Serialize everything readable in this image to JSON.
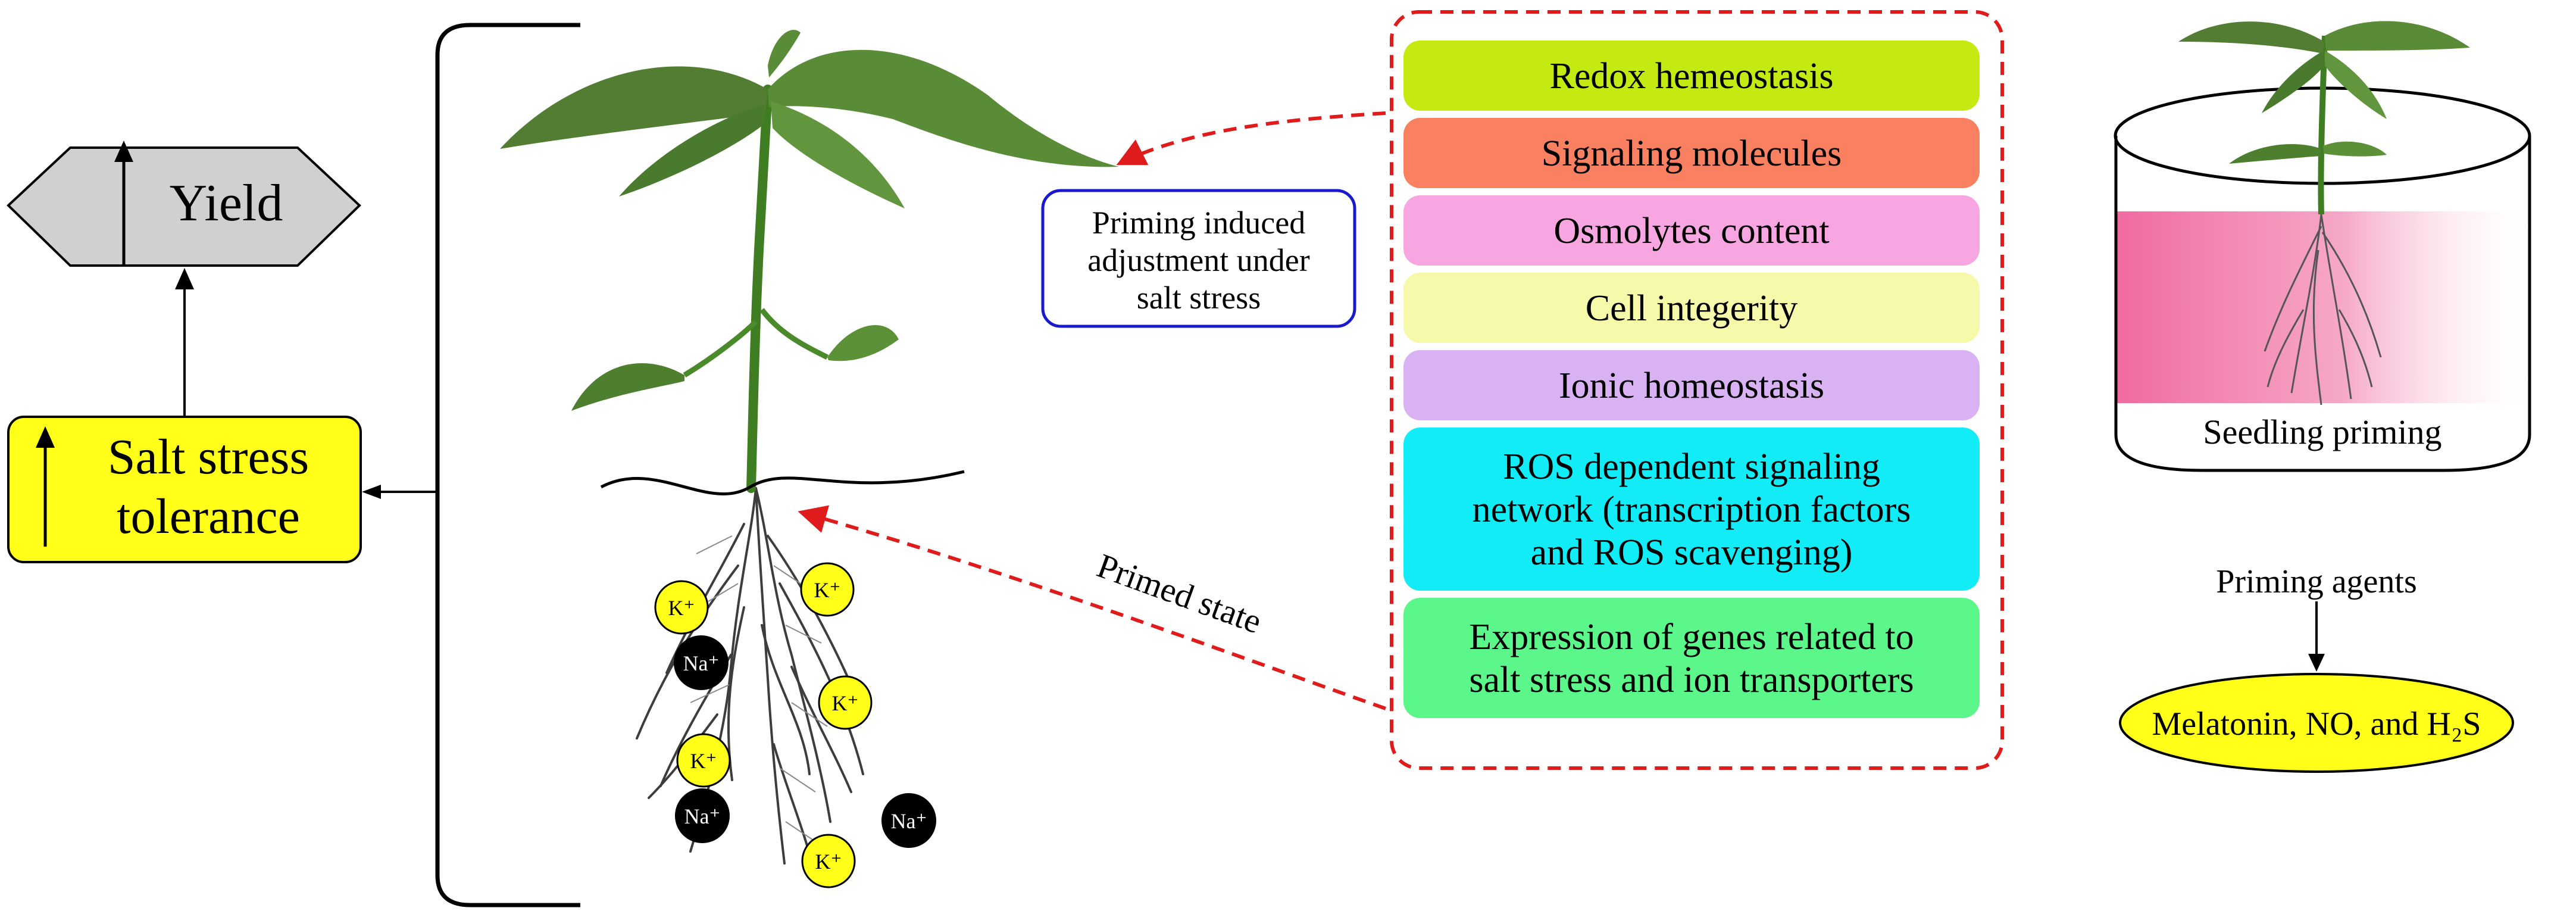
{
  "outcomes": {
    "yield_label": "Yield",
    "tolerance_line1": "Salt stress",
    "tolerance_line2": "tolerance"
  },
  "callout": {
    "line1": "Priming induced",
    "line2": "adjustment under",
    "line3": "salt stress"
  },
  "primed_state_label": "Primed state",
  "adjustments": [
    {
      "lines": [
        "Redox hemeostasis"
      ],
      "color": "#c5ea12"
    },
    {
      "lines": [
        "Signaling molecules"
      ],
      "color": "#f98060"
    },
    {
      "lines": [
        "Osmolytes content"
      ],
      "color": "#f7a6e2"
    },
    {
      "lines": [
        "Cell integerity"
      ],
      "color": "#f6f8aa"
    },
    {
      "lines": [
        "Ionic homeostasis"
      ],
      "color": "#d8b2f3"
    },
    {
      "lines": [
        "ROS dependent signaling",
        "network (transcription factors",
        "and ROS scavenging)"
      ],
      "color": "#11ecf6"
    },
    {
      "lines": [
        "Expression of genes related to",
        "salt stress and ion transporters"
      ],
      "color": "#5cf78a"
    }
  ],
  "priming": {
    "seedling_label": "Seedling priming",
    "agents_label": "Priming agents",
    "agents_list": "Melatonin, NO, and H₂S"
  },
  "ions": {
    "potassium": "K⁺",
    "sodium": "Na⁺"
  },
  "colors": {
    "yield_fill": "#d0d0d0",
    "tolerance_fill": "#ffff19",
    "callout_border": "#1a1acc",
    "dashed_red": "#e01b1b",
    "agents_fill": "#ffff19",
    "potassium_fill": "#ffff19",
    "sodium_fill": "#000000"
  }
}
